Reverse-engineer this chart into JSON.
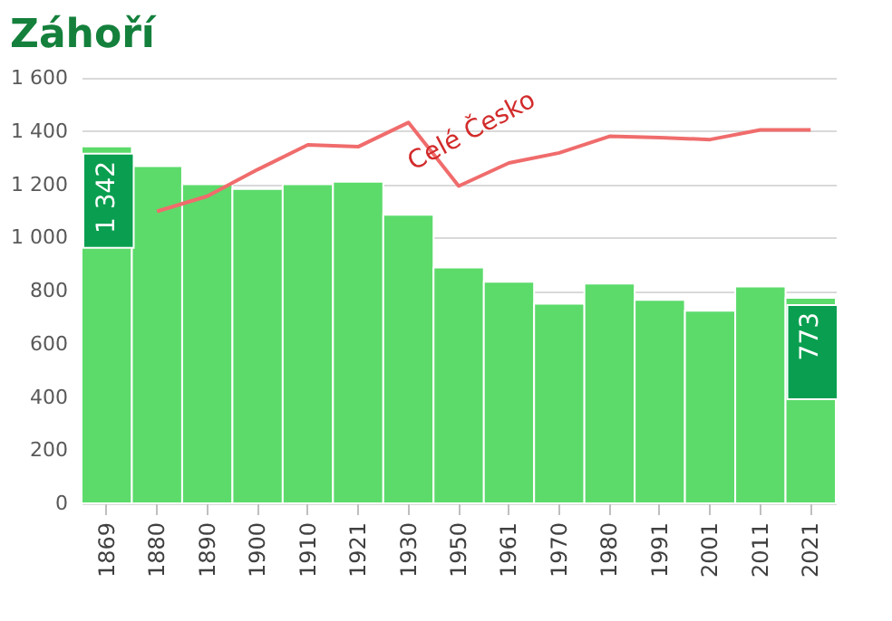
{
  "chart_data": {
    "type": "bar",
    "title": "Záhoří",
    "categories": [
      "1869",
      "1880",
      "1890",
      "1900",
      "1910",
      "1921",
      "1930",
      "1950",
      "1961",
      "1970",
      "1980",
      "1991",
      "2001",
      "2011",
      "2021"
    ],
    "series": [
      {
        "color": "#5cdb6b",
        "values": [
          1342,
          1268,
          1200,
          1182,
          1200,
          1209,
          1085,
          887,
          833,
          751,
          826,
          765,
          724,
          815,
          773
        ],
        "value_labels": [
          "1 342",
          null,
          null,
          null,
          null,
          null,
          null,
          null,
          null,
          null,
          null,
          null,
          null,
          null,
          "773"
        ]
      },
      {
        "type": "line",
        "name": "Celé Česko",
        "color": "#f06c6c",
        "values": [
          null,
          1098,
          1155,
          1255,
          1348,
          1341,
          1432,
          1193,
          1280,
          1318,
          1380,
          1375,
          1368,
          1404,
          1404
        ]
      }
    ],
    "ylim": [
      0,
      1600
    ],
    "yticks": [
      0,
      200,
      400,
      600,
      800,
      {
        "value": 1000,
        "label": "1 000"
      },
      {
        "value": 1200,
        "label": "1 200"
      },
      {
        "value": 1400,
        "label": "1 400"
      },
      {
        "value": 1600,
        "label": "1 600"
      }
    ],
    "grid": "y"
  }
}
